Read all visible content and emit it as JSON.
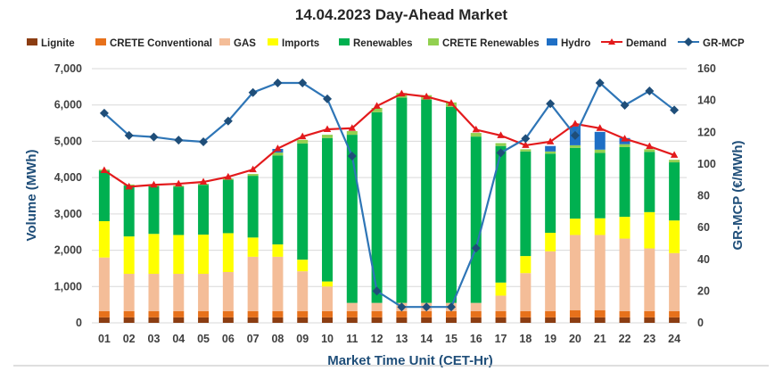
{
  "chart_data": {
    "type": "bar",
    "title": "14.04.2023  Day-Ahead Market",
    "xlabel": "Market Time Unit (CET-Hr)",
    "ylabel": "Volume (MWh)",
    "y2label": "GR-MCP (€/MWh)",
    "ylim": [
      0,
      7000
    ],
    "y2lim": [
      0,
      160
    ],
    "yticks": [
      "0",
      "1,000",
      "2,000",
      "3,000",
      "4,000",
      "5,000",
      "6,000",
      "7,000"
    ],
    "y2ticks": [
      "0",
      "20",
      "40",
      "60",
      "80",
      "100",
      "120",
      "140",
      "160"
    ],
    "categories": [
      "01",
      "02",
      "03",
      "04",
      "05",
      "06",
      "07",
      "08",
      "09",
      "10",
      "11",
      "12",
      "13",
      "14",
      "15",
      "16",
      "17",
      "18",
      "19",
      "20",
      "21",
      "22",
      "23",
      "24"
    ],
    "stack_series": [
      {
        "name": "Lignite",
        "color": "#8b3d12",
        "values": [
          150,
          150,
          150,
          150,
          150,
          150,
          150,
          150,
          150,
          150,
          150,
          150,
          150,
          150,
          150,
          150,
          150,
          150,
          150,
          150,
          150,
          150,
          150,
          150
        ]
      },
      {
        "name": "CRETE Conventional",
        "color": "#e7711b",
        "values": [
          170,
          170,
          170,
          170,
          170,
          170,
          170,
          170,
          170,
          170,
          170,
          170,
          170,
          170,
          170,
          170,
          170,
          170,
          170,
          200,
          200,
          170,
          170,
          170
        ]
      },
      {
        "name": "GAS",
        "color": "#f4bd98",
        "values": [
          1480,
          1030,
          1030,
          1030,
          1030,
          1080,
          1500,
          1500,
          1100,
          680,
          230,
          230,
          230,
          230,
          230,
          230,
          430,
          1050,
          1650,
          2070,
          2070,
          2000,
          1730,
          1600
        ]
      },
      {
        "name": "Imports",
        "color": "#ffff00",
        "values": [
          1000,
          1030,
          1100,
          1070,
          1080,
          1070,
          530,
          340,
          320,
          140,
          0,
          0,
          0,
          0,
          0,
          0,
          360,
          470,
          510,
          450,
          460,
          600,
          1000,
          900
        ]
      },
      {
        "name": "Renewables",
        "color": "#00b050",
        "values": [
          1390,
          1400,
          1310,
          1330,
          1370,
          1470,
          1700,
          2450,
          3200,
          3950,
          4630,
          5250,
          5650,
          5600,
          5400,
          4580,
          3760,
          2880,
          2180,
          1950,
          1800,
          1920,
          1660,
          1600
        ]
      },
      {
        "name": "CRETE Renewables",
        "color": "#92d050",
        "values": [
          30,
          30,
          30,
          30,
          30,
          30,
          50,
          80,
          100,
          90,
          100,
          120,
          130,
          120,
          120,
          100,
          80,
          60,
          60,
          70,
          90,
          80,
          70,
          70
        ]
      },
      {
        "name": "Hydro",
        "color": "#1f6fc5",
        "values": [
          0,
          0,
          0,
          0,
          0,
          0,
          0,
          100,
          0,
          0,
          0,
          0,
          0,
          0,
          0,
          0,
          0,
          0,
          150,
          520,
          490,
          170,
          0,
          0
        ]
      }
    ],
    "demand": {
      "name": "Demand",
      "color": "#e31a1c",
      "values": [
        4200,
        3750,
        3800,
        3830,
        3880,
        4020,
        4220,
        4800,
        5130,
        5330,
        5360,
        5970,
        6310,
        6230,
        6050,
        5320,
        5160,
        4890,
        4990,
        5480,
        5360,
        5070,
        4860,
        4620
      ]
    },
    "gr_mcp": {
      "name": "GR-MCP",
      "color": "#1f4e79",
      "values": [
        132,
        118,
        117,
        115,
        114,
        127,
        145,
        151,
        151,
        141,
        105,
        20,
        10,
        10,
        10,
        47,
        107,
        116,
        138,
        118,
        151,
        137,
        146,
        134
      ]
    }
  }
}
